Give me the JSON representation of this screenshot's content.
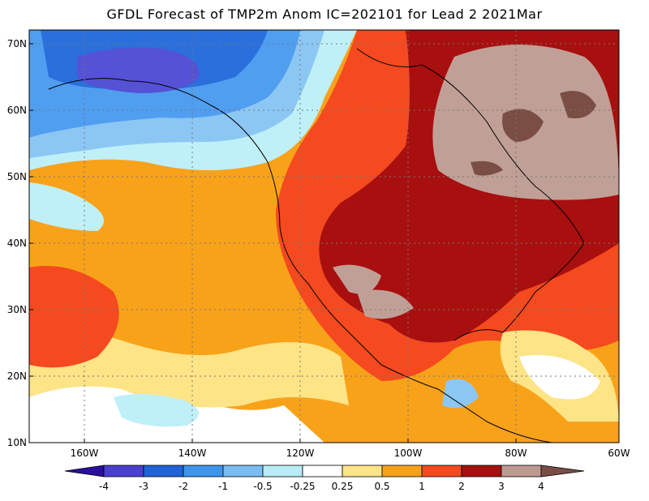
{
  "title": "GFDL Forecast of TMP2m Anom IC=202101 for Lead 2 2021Mar",
  "map": {
    "lat_labels": [
      "70N",
      "60N",
      "50N",
      "40N",
      "30N",
      "20N",
      "10N"
    ],
    "lon_labels": [
      "160W",
      "140W",
      "120W",
      "100W",
      "80W",
      "60W"
    ]
  },
  "colorbar": {
    "levels": [
      "-4",
      "-3",
      "-2",
      "-1",
      "-0.5",
      "-0.25",
      "0.25",
      "0.5",
      "1",
      "2",
      "3",
      "4"
    ],
    "colors": [
      "#2b0d9e",
      "#4b3fd0",
      "#1f63d8",
      "#3d95ee",
      "#79bdf2",
      "#b8ecf6",
      "#ffffff",
      "#fde486",
      "#f8a21a",
      "#f5491f",
      "#a80f0f",
      "#bf9a92",
      "#7a4e45"
    ]
  },
  "field_colors": {
    "anom_neg4": "#3a2fb8",
    "anom_neg3": "#5552d5",
    "anom_neg2": "#2a6fdc",
    "anom_neg1": "#4f9ef0",
    "anom_neg05": "#8cc7f4",
    "anom_neg025": "#bff0f8",
    "anom_near0": "#ffffff",
    "anom_025": "#fde486",
    "anom_05": "#f8a21a",
    "anom_1": "#f5491f",
    "anom_2": "#a80f0f",
    "anom_3": "#c0a096",
    "anom_4": "#7a4e45"
  }
}
